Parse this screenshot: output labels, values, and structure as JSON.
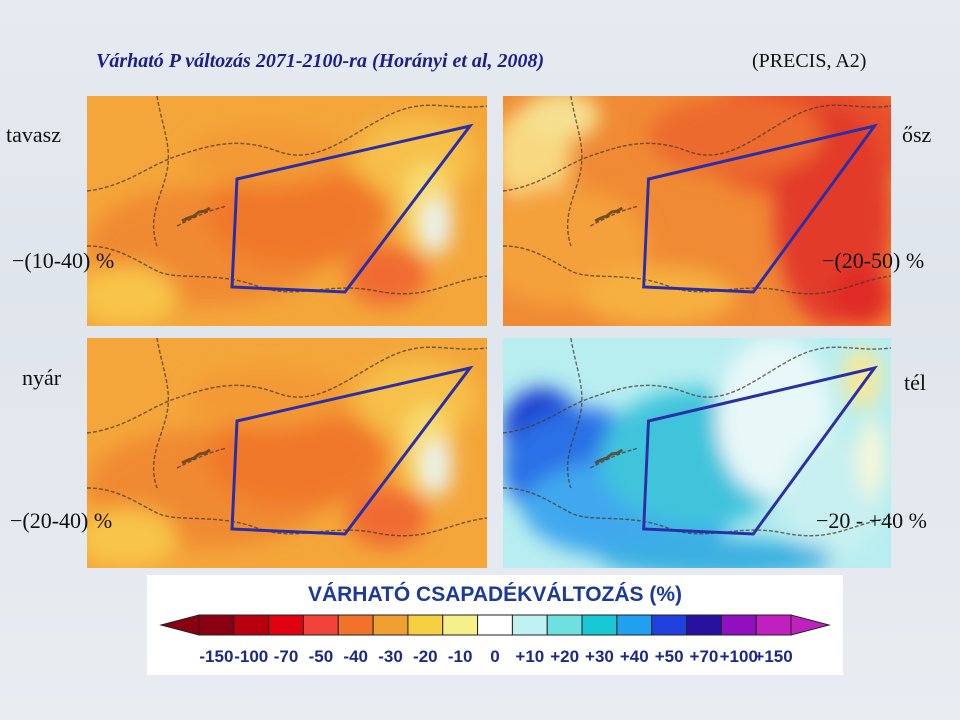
{
  "title": "Várható P változás 2071-2100-ra (Horányi et al, 2008)",
  "model": "(PRECIS, A2)",
  "panels": [
    {
      "season": "tavasz",
      "change": "−(10-40) %",
      "palette": "orange"
    },
    {
      "season": "ősz",
      "change": "−(20-50) %",
      "palette": "red"
    },
    {
      "season": "nyár",
      "change": "−(20-40) %",
      "palette": "orange"
    },
    {
      "season": "tél",
      "change": "−20 - +40 %",
      "palette": "blue"
    }
  ],
  "legend": {
    "title": "VÁRHATÓ CSAPADÉKVÁLTOZÁS (%)",
    "ticks": [
      "-150",
      "-100",
      "-70",
      "-50",
      "-40",
      "-30",
      "-20",
      "-10",
      "0",
      "+10",
      "+20",
      "+30",
      "+40",
      "+50",
      "+70",
      "+100",
      "+150"
    ],
    "colors": [
      "#8b0010",
      "#b8000e",
      "#e00010",
      "#f2423a",
      "#f2722a",
      "#f0a030",
      "#f5d040",
      "#f6f08a",
      "#ffffff",
      "#bff2f2",
      "#6ee0e0",
      "#18c8d4",
      "#20a0f0",
      "#2040e0",
      "#2810a0",
      "#9010c0",
      "#c020c0"
    ]
  }
}
